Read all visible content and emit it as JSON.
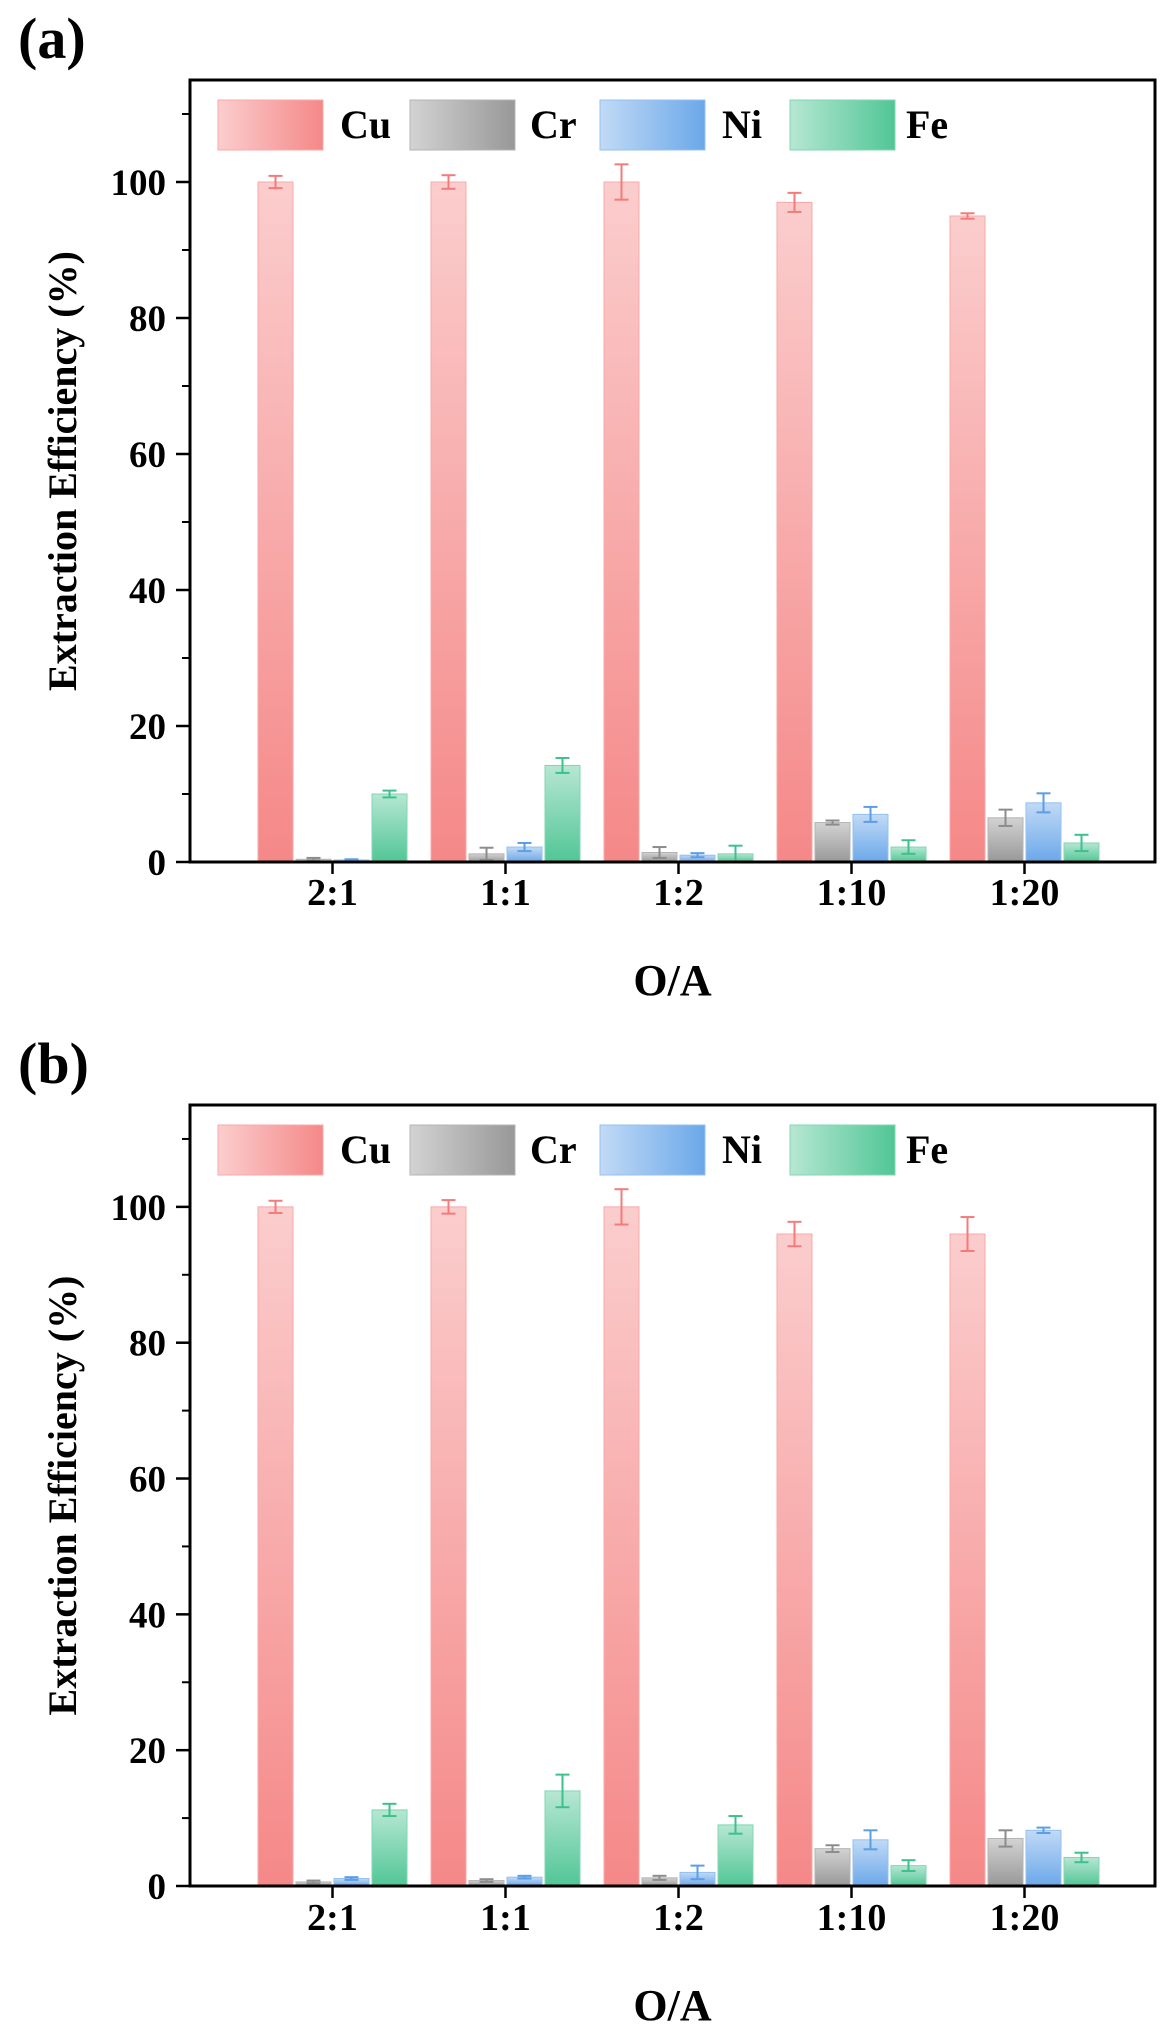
{
  "figure": {
    "panels": [
      "(a)",
      "(b)"
    ]
  },
  "chart_data": [
    {
      "type": "bar",
      "panel_label": "(a)",
      "title": "",
      "xlabel": "O/A",
      "ylabel": "Extraction Efficiency (%)",
      "categories": [
        "2:1",
        "1:1",
        "1:2",
        "1:10",
        "1:20"
      ],
      "ylim": [
        0,
        115
      ],
      "yticks": [
        0,
        20,
        40,
        60,
        80,
        100
      ],
      "grid": false,
      "legend_position": "top",
      "series": [
        {
          "name": "Cu",
          "color": "#f47b7b",
          "values": [
            100,
            100,
            100,
            97,
            95
          ],
          "errors": [
            0.9,
            1.0,
            2.6,
            1.4,
            0.4
          ]
        },
        {
          "name": "Cr",
          "color": "#8c8c8c",
          "values": [
            0.4,
            1.2,
            1.4,
            5.8,
            6.5
          ],
          "errors": [
            0.2,
            0.9,
            0.8,
            0.3,
            1.2
          ]
        },
        {
          "name": "Ni",
          "color": "#5b9ee6",
          "values": [
            0.3,
            2.2,
            1.0,
            7.0,
            8.7
          ],
          "errors": [
            0.1,
            0.6,
            0.3,
            1.1,
            1.4
          ]
        },
        {
          "name": "Fe",
          "color": "#3ec08a",
          "values": [
            10.0,
            14.2,
            1.2,
            2.2,
            2.8
          ],
          "errors": [
            0.5,
            1.1,
            1.2,
            1.0,
            1.2
          ]
        }
      ]
    },
    {
      "type": "bar",
      "panel_label": "(b)",
      "title": "",
      "xlabel": "O/A",
      "ylabel": "Extraction Efficiency (%)",
      "categories": [
        "2:1",
        "1:1",
        "1:2",
        "1:10",
        "1:20"
      ],
      "ylim": [
        0,
        115
      ],
      "yticks": [
        0,
        20,
        40,
        60,
        80,
        100
      ],
      "grid": false,
      "legend_position": "top",
      "series": [
        {
          "name": "Cu",
          "color": "#f47b7b",
          "values": [
            100,
            100,
            100,
            96,
            96
          ],
          "errors": [
            0.9,
            1.0,
            2.6,
            1.8,
            2.5
          ]
        },
        {
          "name": "Cr",
          "color": "#8c8c8c",
          "values": [
            0.6,
            0.8,
            1.2,
            5.5,
            7.0
          ],
          "errors": [
            0.2,
            0.2,
            0.3,
            0.5,
            1.2
          ]
        },
        {
          "name": "Ni",
          "color": "#5b9ee6",
          "values": [
            1.1,
            1.3,
            2.0,
            6.8,
            8.2
          ],
          "errors": [
            0.2,
            0.2,
            1.0,
            1.4,
            0.4
          ]
        },
        {
          "name": "Fe",
          "color": "#3ec08a",
          "values": [
            11.2,
            14.0,
            9.0,
            3.0,
            4.2
          ],
          "errors": [
            0.9,
            2.4,
            1.3,
            0.8,
            0.7
          ]
        }
      ]
    }
  ]
}
